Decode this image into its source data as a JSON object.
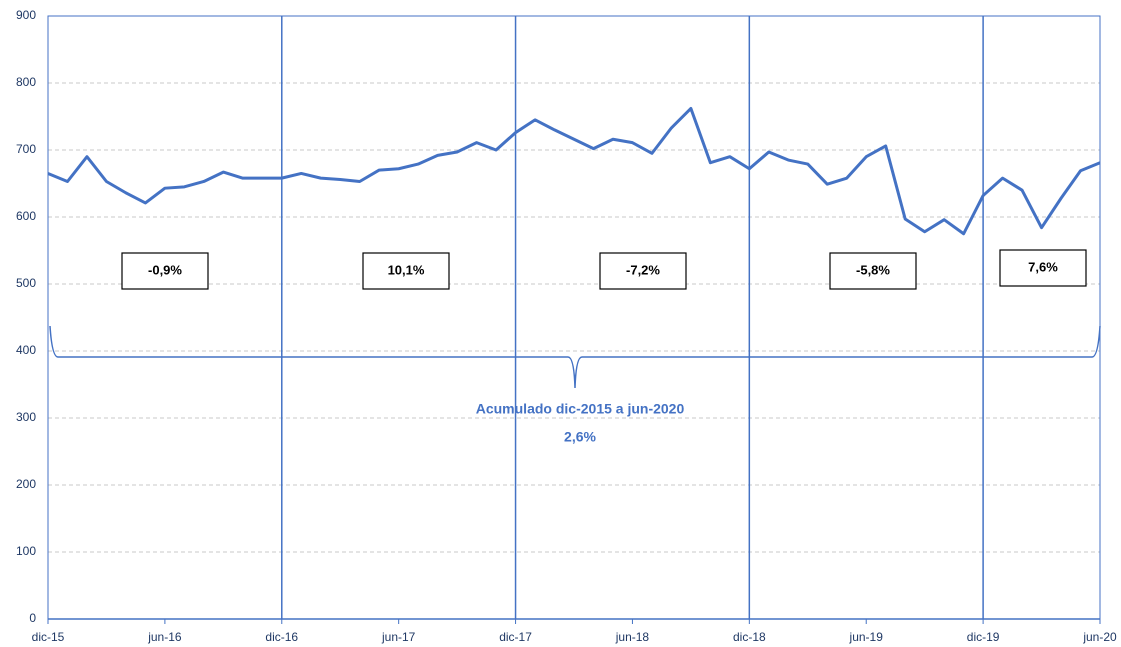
{
  "chart_data": {
    "type": "line",
    "categories": [
      "dic-15",
      null,
      null,
      null,
      null,
      null,
      "jun-16",
      null,
      null,
      null,
      null,
      null,
      "dic-16",
      null,
      null,
      null,
      null,
      null,
      "jun-17",
      null,
      null,
      null,
      null,
      null,
      "dic-17",
      null,
      null,
      null,
      null,
      null,
      "jun-18",
      null,
      null,
      null,
      null,
      null,
      "dic-18",
      null,
      null,
      null,
      null,
      null,
      "jun-19",
      null,
      null,
      null,
      null,
      null,
      "dic-19",
      null,
      null,
      null,
      null,
      null,
      "jun-20"
    ],
    "values": [
      665,
      653,
      690,
      653,
      636,
      621,
      643,
      645,
      653,
      667,
      658,
      658,
      658,
      665,
      658,
      656,
      653,
      670,
      672,
      679,
      692,
      697,
      711,
      700,
      726,
      745,
      730,
      716,
      702,
      716,
      711,
      695,
      733,
      762,
      681,
      690,
      672,
      697,
      685,
      679,
      649,
      658,
      690,
      706,
      597,
      578,
      596,
      575,
      632,
      658,
      640,
      584,
      628,
      669,
      681
    ],
    "color": "#4472c4",
    "ylim": [
      0,
      900
    ],
    "yticks": [
      0,
      100,
      200,
      300,
      400,
      500,
      600,
      700,
      800,
      900
    ],
    "grid": true,
    "annotations": [
      "-0,9%",
      "10,1%",
      "-7,2%",
      "-5,8%",
      "7,6%"
    ],
    "total_label": "Acumulado dic-2015 a jun-2020",
    "total_value": "2,6%"
  }
}
